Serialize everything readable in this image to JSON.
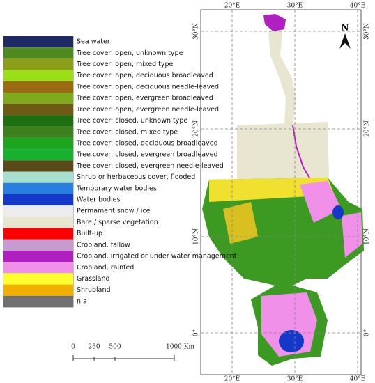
{
  "legend": [
    {
      "label": "Sea water",
      "color": "#1e2a62"
    },
    {
      "label": "Tree cover: open, unknown type",
      "color": "#4f8a1e"
    },
    {
      "label": "Tree cover: open, mixed type",
      "color": "#8d9e1a"
    },
    {
      "label": "Tree cover: open, deciduous broadleaved",
      "color": "#9be016"
    },
    {
      "label": "Tree cover: open, deciduous needle-leaved",
      "color": "#9c6a10"
    },
    {
      "label": "Tree cover: open, evergreen broadleaved",
      "color": "#7faa1e"
    },
    {
      "label": "Tree cover: open, evergreen needle-leaved",
      "color": "#6e5a14"
    },
    {
      "label": "Tree cover: closed, unknown type",
      "color": "#1e6e12"
    },
    {
      "label": "Tree cover: closed, mixed type",
      "color": "#3c7f1c"
    },
    {
      "label": "Tree cover: closed, deciduous broadleaved",
      "color": "#1ea51e"
    },
    {
      "label": "Tree cover: closed, evergreen broadleaved",
      "color": "#18b030"
    },
    {
      "label": "Tree cover: closed, evergreen needle-leaved",
      "color": "#5a4a1a"
    },
    {
      "label": "Shrub or herbaceous cover, flooded",
      "color": "#a8e0d0"
    },
    {
      "label": "Temporary water bodies",
      "color": "#2a7ee0"
    },
    {
      "label": "Water bodies",
      "color": "#1438c8"
    },
    {
      "label": "Permament snow / ice",
      "color": "#ececec"
    },
    {
      "label": "Bare / sparse vegetation",
      "color": "#e8e6d0"
    },
    {
      "label": "Built-up",
      "color": "#ff0000"
    },
    {
      "label": "Cropland, fallow",
      "color": "#c89bd0"
    },
    {
      "label": "Cropland, irrigated or under water management",
      "color": "#b020c0"
    },
    {
      "label": "Cropland, rainfed",
      "color": "#f090e8"
    },
    {
      "label": "Grassland",
      "color": "#ffff30"
    },
    {
      "label": "Shrubland",
      "color": "#f0b000"
    },
    {
      "label": "n.a",
      "color": "#707070"
    }
  ],
  "scale_bar": {
    "labels": [
      "0",
      "250",
      "500",
      "1000 Km"
    ]
  },
  "north_arrow": "N",
  "graticule": {
    "top": [
      "20°E",
      "30°E",
      "40°E"
    ],
    "bottom": [
      "20°E",
      "30°E",
      "40°E"
    ],
    "left": [
      "30°N",
      "20°N",
      "10°N",
      "0°"
    ],
    "right": [
      "30°N",
      "20°N",
      "10°N",
      "0°"
    ]
  }
}
